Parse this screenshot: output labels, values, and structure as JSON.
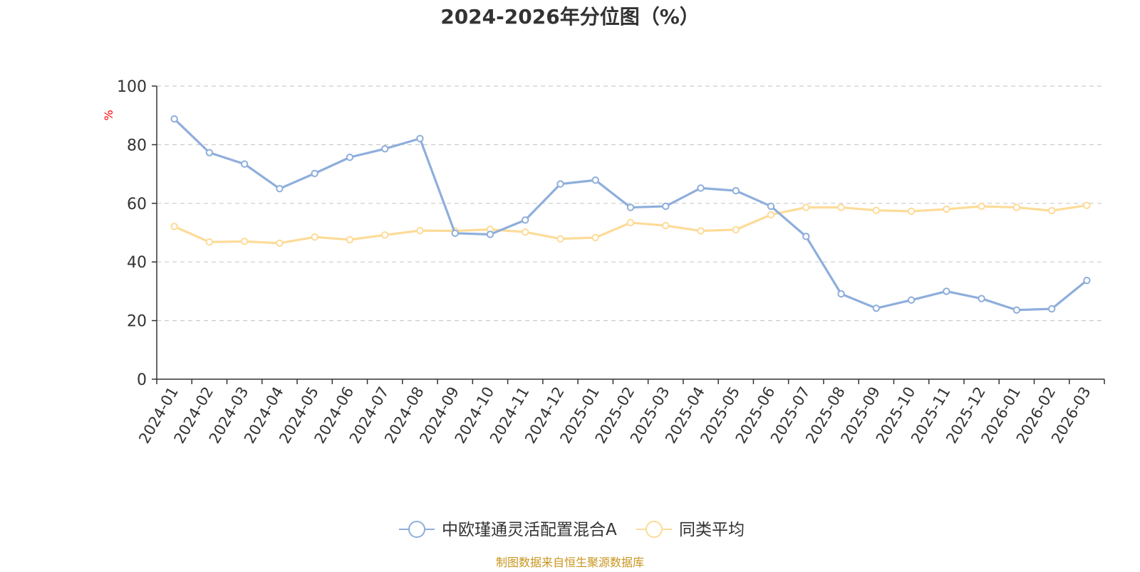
{
  "chart_data": {
    "type": "line",
    "title": "2024-2026年分位图（%）",
    "ylabel": "%",
    "xlabel": "",
    "ylim": [
      0,
      100
    ],
    "yticks": [
      0,
      20,
      40,
      60,
      80,
      100
    ],
    "grid": true,
    "legend_position": "bottom-center",
    "categories": [
      "2024-01",
      "2024-02",
      "2024-03",
      "2024-04",
      "2024-05",
      "2024-06",
      "2024-07",
      "2024-08",
      "2024-09",
      "2024-10",
      "2024-11",
      "2024-12",
      "2025-01",
      "2025-02",
      "2025-03",
      "2025-04",
      "2025-05",
      "2025-06",
      "2025-07",
      "2025-08",
      "2025-09",
      "2025-10",
      "2025-11",
      "2025-12",
      "2026-01",
      "2026-02",
      "2026-03"
    ],
    "series": [
      {
        "name": "中欧瑾通灵活配置混合A",
        "color": "#8eaedc",
        "values": [
          88.8,
          77.3,
          73.4,
          65.0,
          70.2,
          75.7,
          78.6,
          82.1,
          49.8,
          49.4,
          54.3,
          66.6,
          67.9,
          58.6,
          59.0,
          65.2,
          64.3,
          59.0,
          48.7,
          29.1,
          24.2,
          27.0,
          30.0,
          27.5,
          23.6,
          24.0,
          33.7
        ]
      },
      {
        "name": "同类平均",
        "color": "#fddb98",
        "values": [
          52.1,
          46.8,
          47.0,
          46.4,
          48.5,
          47.6,
          49.2,
          50.7,
          50.6,
          51.1,
          50.2,
          47.9,
          48.3,
          53.4,
          52.4,
          50.6,
          51.0,
          56.1,
          58.6,
          58.6,
          57.6,
          57.3,
          58.0,
          59.0,
          58.6,
          57.5,
          59.3
        ]
      }
    ]
  },
  "source_note": "制图数据来自恒生聚源数据库",
  "colors": {
    "axis": "#333333",
    "grid": "#cccccc",
    "ylabel": "#ff0000",
    "source_note": "#c8961e",
    "text": "#333333"
  }
}
